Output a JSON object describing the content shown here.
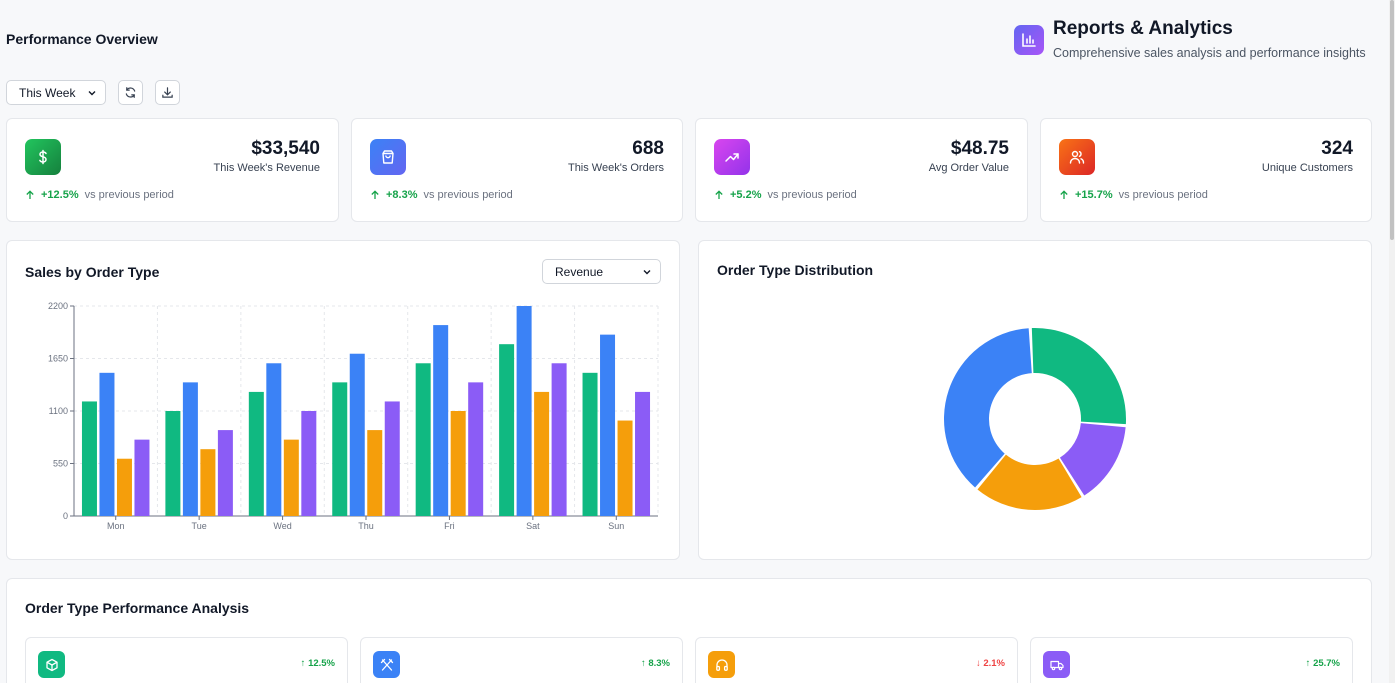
{
  "header": {
    "section_title": "Performance Overview",
    "brand_title": "Reports & Analytics",
    "brand_subtitle": "Comprehensive sales analysis and performance insights",
    "brand_icon": "bar-chart-icon"
  },
  "controls": {
    "period_select": "This Week",
    "refresh_icon": "refresh-icon",
    "download_icon": "download-icon"
  },
  "kpis": [
    {
      "value": "$33,540",
      "label": "This Week's Revenue",
      "change": "+12.5%",
      "compare": "vs previous period",
      "icon": "dollar-icon",
      "color": "#16a34a"
    },
    {
      "value": "688",
      "label": "This Week's Orders",
      "change": "+8.3%",
      "compare": "vs previous period",
      "icon": "shopping-bag-icon",
      "color": "#4f46e5"
    },
    {
      "value": "$48.75",
      "label": "Avg Order Value",
      "change": "+5.2%",
      "compare": "vs previous period",
      "icon": "trending-up-icon",
      "color": "#c026d3"
    },
    {
      "value": "324",
      "label": "Unique Customers",
      "change": "+15.7%",
      "compare": "vs previous period",
      "icon": "users-icon",
      "color": "#ea580c"
    }
  ],
  "sales_chart": {
    "title": "Sales by Order Type",
    "metric_select": "Revenue"
  },
  "distribution_chart": {
    "title": "Order Type Distribution"
  },
  "chart_data": [
    {
      "type": "bar",
      "categories": [
        "Mon",
        "Tue",
        "Wed",
        "Thu",
        "Fri",
        "Sat",
        "Sun"
      ],
      "series": [
        {
          "values": [
            1200,
            1100,
            1300,
            1400,
            1600,
            1800,
            1500
          ],
          "color": "#10b981"
        },
        {
          "values": [
            1500,
            1400,
            1600,
            1700,
            2000,
            2200,
            1900
          ],
          "color": "#3b82f6"
        },
        {
          "values": [
            600,
            700,
            800,
            900,
            1100,
            1300,
            1000
          ],
          "color": "#f59e0b"
        },
        {
          "values": [
            800,
            900,
            1100,
            1200,
            1400,
            1600,
            1300
          ],
          "color": "#8b5cf6"
        }
      ],
      "ylim": [
        0,
        2200
      ],
      "yticks": [
        "0",
        "550",
        "1100",
        "1650",
        "2200"
      ],
      "grid": true
    },
    {
      "type": "pie",
      "donut": true,
      "slices": [
        {
          "value": 27,
          "color": "#10b981"
        },
        {
          "value": 15,
          "color": "#8b5cf6"
        },
        {
          "value": 20,
          "color": "#f59e0b"
        },
        {
          "value": 38,
          "color": "#3b82f6"
        }
      ]
    }
  ],
  "analysis": {
    "title": "Order Type Performance Analysis",
    "cards": [
      {
        "icon": "package-icon",
        "color": "#10b981",
        "trend": "12.5%",
        "direction": "up"
      },
      {
        "icon": "utensils-icon",
        "color": "#3b82f6",
        "trend": "8.3%",
        "direction": "up"
      },
      {
        "icon": "headphones-icon",
        "color": "#f59e0b",
        "trend": "2.1%",
        "direction": "down"
      },
      {
        "icon": "truck-icon",
        "color": "#8b5cf6",
        "trend": "25.7%",
        "direction": "up"
      }
    ]
  }
}
